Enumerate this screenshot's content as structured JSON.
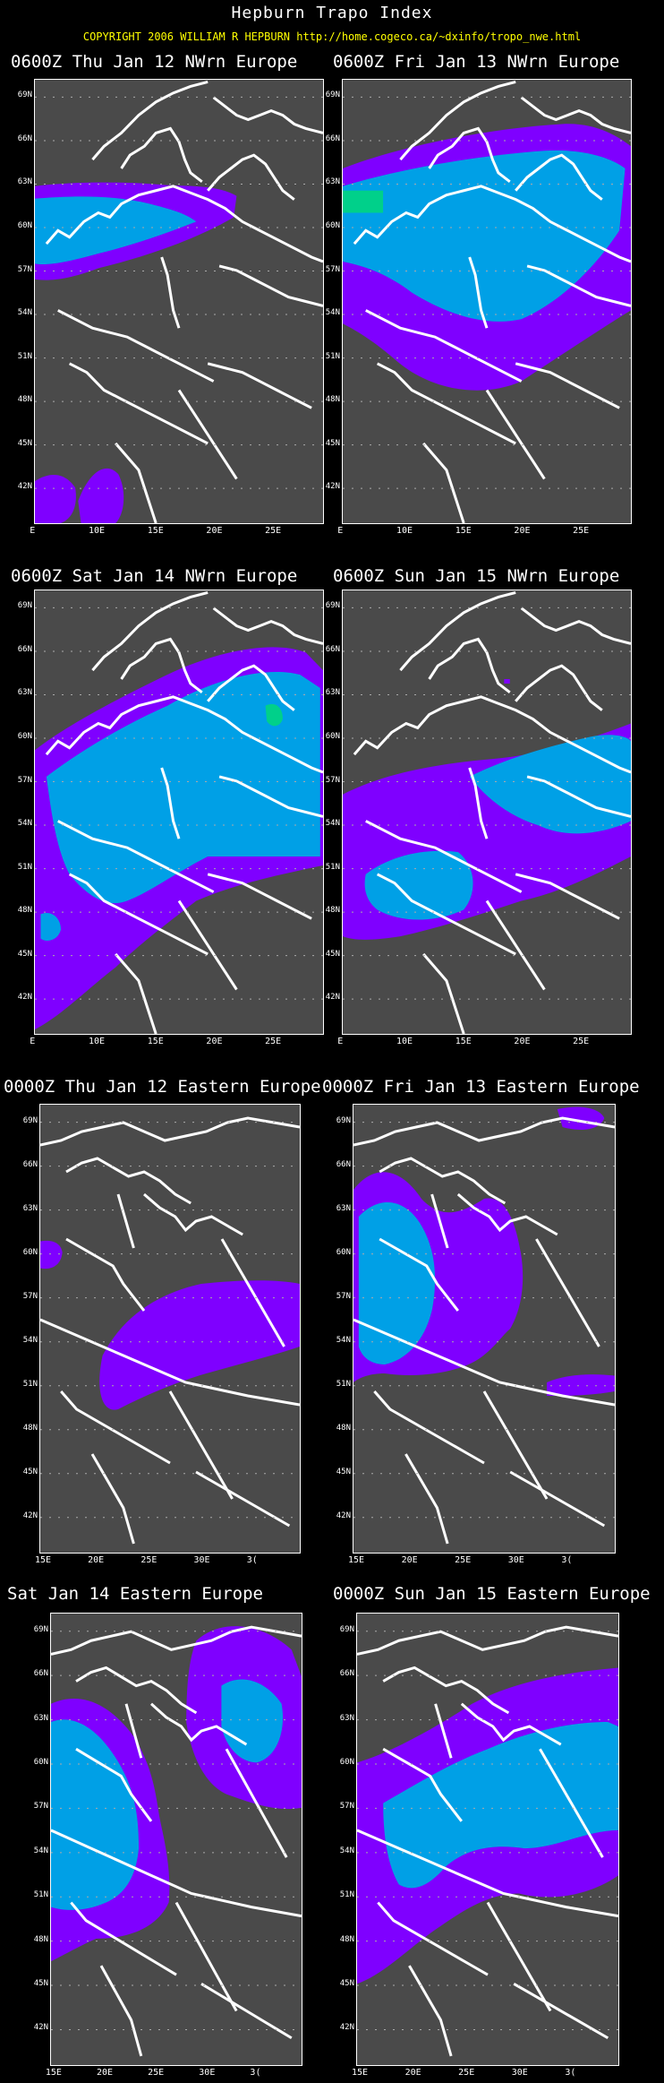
{
  "header": {
    "title": "Hepburn Trapo Index",
    "copyright": "COPYRIGHT 2006  WILLIAM R HEPBURN  http://home.cogeco.ca/~dxinfo/tropo_nwe.html"
  },
  "colors": {
    "background": "#000000",
    "land": "#4a4a4a",
    "index_low": "#7f00ff",
    "index_mid": "#00a0e6",
    "index_high": "#00d08a",
    "coast": "#ffffff"
  },
  "panels": [
    {
      "title": "0600Z Thu Jan 12 NWrn Europe",
      "region": "nwe",
      "y_ticks": [
        "69N",
        "66N",
        "63N",
        "60N",
        "57N",
        "54N",
        "51N",
        "48N",
        "45N",
        "42N"
      ],
      "x_ticks": [
        "E",
        "10E",
        "15E",
        "20E",
        "25E"
      ]
    },
    {
      "title": "0600Z Fri Jan 13 NWrn Europe",
      "region": "nwe",
      "y_ticks": [
        "69N",
        "66N",
        "63N",
        "60N",
        "57N",
        "54N",
        "51N",
        "48N",
        "45N",
        "42N"
      ],
      "x_ticks": [
        "E",
        "10E",
        "15E",
        "20E",
        "25E"
      ]
    },
    {
      "title": "0600Z Sat Jan 14 NWrn Europe",
      "region": "nwe",
      "y_ticks": [
        "69N",
        "66N",
        "63N",
        "60N",
        "57N",
        "54N",
        "51N",
        "48N",
        "45N",
        "42N"
      ],
      "x_ticks": [
        "E",
        "10E",
        "15E",
        "20E",
        "25E"
      ]
    },
    {
      "title": "0600Z Sun Jan 15 NWrn Europe",
      "region": "nwe",
      "y_ticks": [
        "69N",
        "66N",
        "63N",
        "60N",
        "57N",
        "54N",
        "51N",
        "48N",
        "45N",
        "42N"
      ],
      "x_ticks": [
        "E",
        "10E",
        "15E",
        "20E",
        "25E"
      ]
    },
    {
      "title": "0000Z Thu Jan 12 Eastern Europe",
      "region": "ee",
      "y_ticks": [
        "69N",
        "66N",
        "63N",
        "60N",
        "57N",
        "54N",
        "51N",
        "48N",
        "45N",
        "42N"
      ],
      "x_ticks": [
        "15E",
        "20E",
        "25E",
        "30E",
        "3("
      ]
    },
    {
      "title": "0000Z Fri Jan 13 Eastern Europe",
      "region": "ee",
      "y_ticks": [
        "69N",
        "66N",
        "63N",
        "60N",
        "57N",
        "54N",
        "51N",
        "48N",
        "45N",
        "42N"
      ],
      "x_ticks": [
        "15E",
        "20E",
        "25E",
        "30E",
        "3("
      ]
    },
    {
      "title": "Sat Jan 14 Eastern Europe",
      "region": "ee",
      "y_ticks": [
        "69N",
        "66N",
        "63N",
        "60N",
        "57N",
        "54N",
        "51N",
        "48N",
        "45N",
        "42N"
      ],
      "x_ticks": [
        "15E",
        "20E",
        "25E",
        "30E",
        "3("
      ]
    },
    {
      "title": "0000Z Sun Jan 15 Eastern Europe",
      "region": "ee",
      "y_ticks": [
        "69N",
        "66N",
        "63N",
        "60N",
        "57N",
        "54N",
        "51N",
        "48N",
        "45N",
        "42N"
      ],
      "x_ticks": [
        "15E",
        "20E",
        "25E",
        "30E",
        "3("
      ]
    }
  ]
}
